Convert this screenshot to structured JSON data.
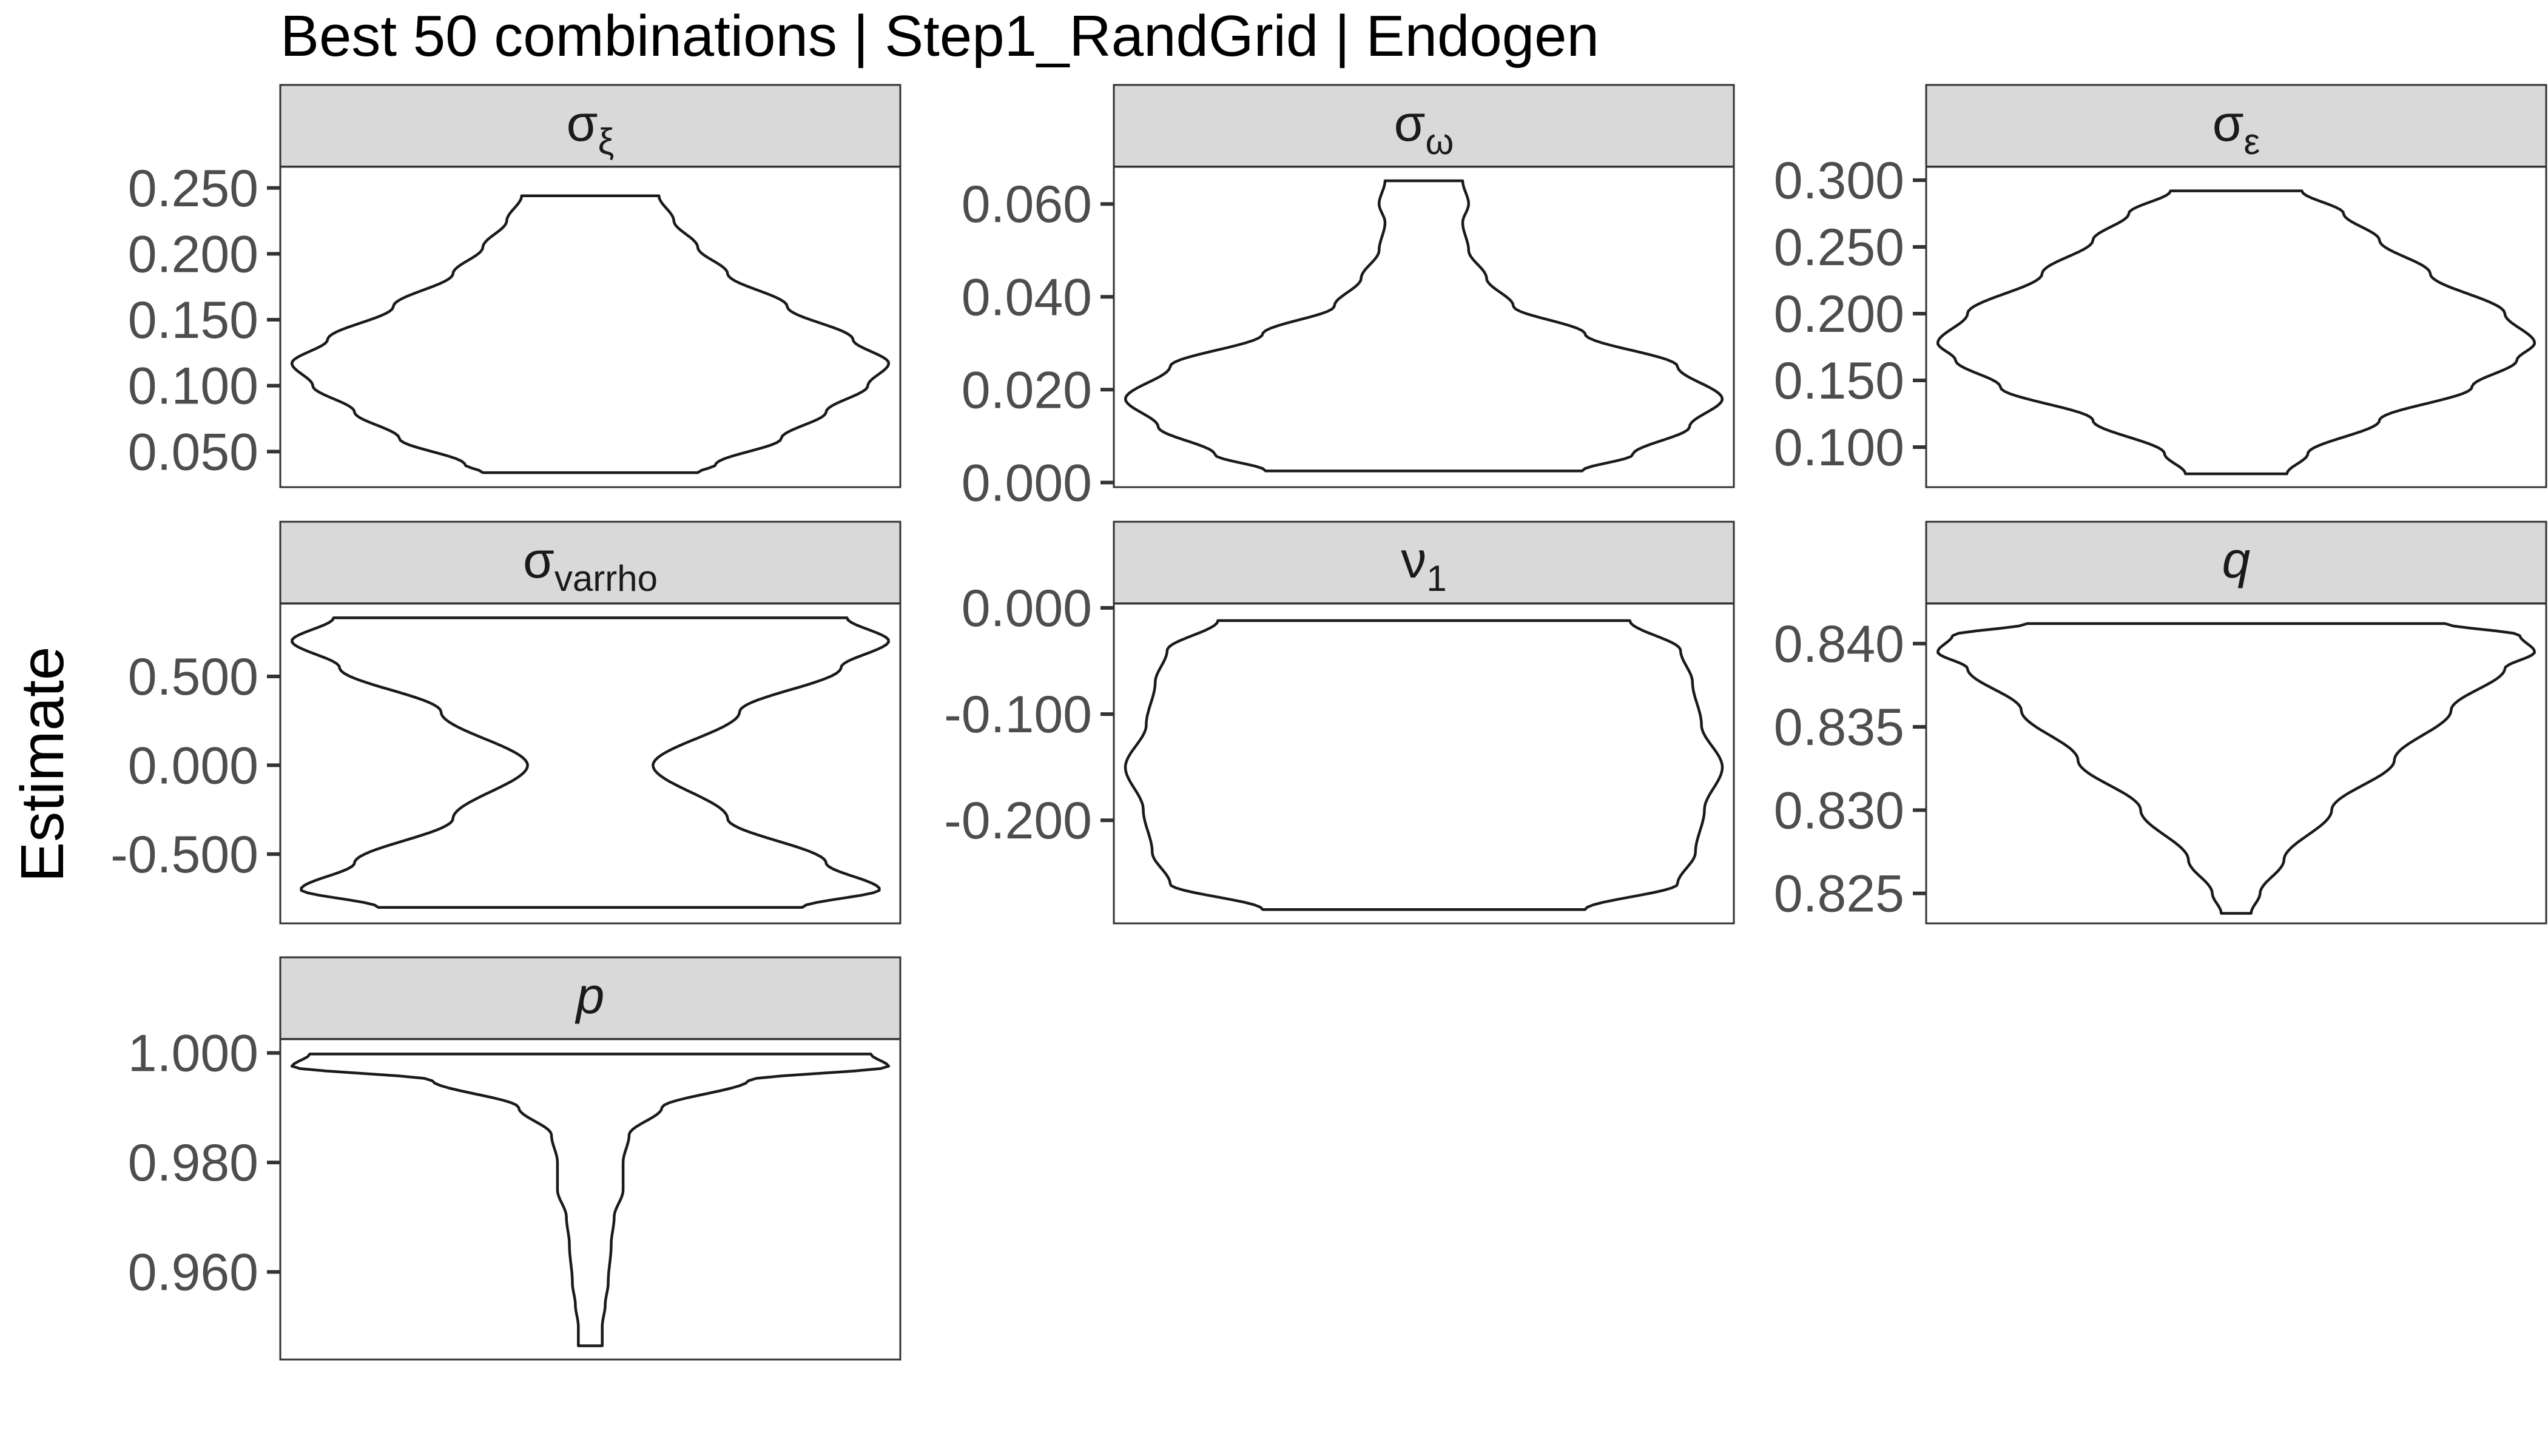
{
  "chart_data": {
    "type": "violin",
    "title": "Best 50 combinations | Step1_RandGrid | Endogen",
    "ylabel": "Estimate",
    "xlabel": "",
    "grid": false,
    "legend": "none",
    "colors": {
      "strip_fill": "#d9d9d9",
      "panel_border": "#333333",
      "violin_stroke": "#1a1a1a",
      "violin_fill": "#ffffff",
      "tick_label": "#4d4d4d"
    },
    "panels": [
      {
        "id": "sigma_xi",
        "label": {
          "base": "σ",
          "sub": "ξ"
        },
        "ylim": [
          0.023,
          0.266
        ],
        "yticks": [
          "0.050",
          "0.100",
          "0.150",
          "0.200",
          "0.250"
        ],
        "tick_values": [
          0.05,
          0.1,
          0.15,
          0.2,
          0.25
        ],
        "violin_min": 0.034,
        "violin_max": 0.244,
        "density_profile": [
          [
            0.034,
            0.36
          ],
          [
            0.04,
            0.42
          ],
          [
            0.06,
            0.64
          ],
          [
            0.08,
            0.79
          ],
          [
            0.1,
            0.93
          ],
          [
            0.117,
            1.0
          ],
          [
            0.135,
            0.88
          ],
          [
            0.16,
            0.66
          ],
          [
            0.185,
            0.46
          ],
          [
            0.205,
            0.36
          ],
          [
            0.225,
            0.28
          ],
          [
            0.244,
            0.23
          ]
        ]
      },
      {
        "id": "sigma_omega",
        "label": {
          "base": "σ",
          "sub": "ω"
        },
        "ylim": [
          -0.001,
          0.068
        ],
        "yticks": [
          "0.000",
          "0.020",
          "0.040",
          "0.060"
        ],
        "tick_values": [
          0.0,
          0.02,
          0.04,
          0.06
        ],
        "violin_min": 0.0025,
        "violin_max": 0.065,
        "density_profile": [
          [
            0.0025,
            0.53
          ],
          [
            0.006,
            0.7
          ],
          [
            0.012,
            0.89
          ],
          [
            0.018,
            1.0
          ],
          [
            0.025,
            0.85
          ],
          [
            0.032,
            0.54
          ],
          [
            0.038,
            0.3
          ],
          [
            0.044,
            0.21
          ],
          [
            0.05,
            0.15
          ],
          [
            0.056,
            0.13
          ],
          [
            0.06,
            0.15
          ],
          [
            0.065,
            0.13
          ]
        ]
      },
      {
        "id": "sigma_epsilon",
        "label": {
          "base": "σ",
          "sub": "ε"
        },
        "ylim": [
          0.07,
          0.31
        ],
        "yticks": [
          "0.100",
          "0.150",
          "0.200",
          "0.250",
          "0.300"
        ],
        "tick_values": [
          0.1,
          0.15,
          0.2,
          0.25,
          0.3
        ],
        "violin_min": 0.08,
        "violin_max": 0.292,
        "density_profile": [
          [
            0.08,
            0.17
          ],
          [
            0.095,
            0.24
          ],
          [
            0.12,
            0.48
          ],
          [
            0.145,
            0.79
          ],
          [
            0.165,
            0.94
          ],
          [
            0.178,
            1.0
          ],
          [
            0.2,
            0.9
          ],
          [
            0.23,
            0.65
          ],
          [
            0.255,
            0.48
          ],
          [
            0.275,
            0.36
          ],
          [
            0.292,
            0.22
          ]
        ]
      },
      {
        "id": "sigma_varrho",
        "label": {
          "base": "σ",
          "sub": "varrho"
        },
        "ylim": [
          -0.89,
          0.91
        ],
        "yticks": [
          "-0.500",
          "0.000",
          "0.500"
        ],
        "tick_values": [
          -0.5,
          0.0,
          0.5
        ],
        "violin_min": -0.8,
        "violin_max": 0.83,
        "density_profile": [
          [
            -0.8,
            0.71
          ],
          [
            -0.7,
            0.97
          ],
          [
            -0.55,
            0.79
          ],
          [
            -0.3,
            0.46
          ],
          [
            0.0,
            0.21
          ],
          [
            0.3,
            0.5
          ],
          [
            0.55,
            0.84
          ],
          [
            0.7,
            1.0
          ],
          [
            0.83,
            0.86
          ]
        ]
      },
      {
        "id": "nu_1",
        "label": {
          "base": "ν",
          "sub": "1"
        },
        "ylim": [
          -0.297,
          0.004
        ],
        "yticks": [
          "-0.200",
          "-0.100",
          "0.000"
        ],
        "tick_values": [
          -0.2,
          -0.1,
          0.0
        ],
        "violin_min": -0.284,
        "violin_max": -0.012,
        "density_profile": [
          [
            -0.284,
            0.54
          ],
          [
            -0.26,
            0.85
          ],
          [
            -0.23,
            0.91
          ],
          [
            -0.19,
            0.94
          ],
          [
            -0.15,
            1.0
          ],
          [
            -0.11,
            0.93
          ],
          [
            -0.07,
            0.9
          ],
          [
            -0.04,
            0.86
          ],
          [
            -0.012,
            0.69
          ]
        ]
      },
      {
        "id": "q",
        "label": {
          "base": "q",
          "sub": ""
        },
        "ylim": [
          0.8232,
          0.8424
        ],
        "yticks": [
          "0.825",
          "0.830",
          "0.835",
          "0.840"
        ],
        "tick_values": [
          0.825,
          0.83,
          0.835,
          0.84
        ],
        "violin_min": 0.8238,
        "violin_max": 0.8412,
        "density_profile": [
          [
            0.8238,
            0.05
          ],
          [
            0.825,
            0.08
          ],
          [
            0.827,
            0.16
          ],
          [
            0.83,
            0.32
          ],
          [
            0.833,
            0.53
          ],
          [
            0.836,
            0.72
          ],
          [
            0.8385,
            0.9
          ],
          [
            0.8395,
            1.0
          ],
          [
            0.8405,
            0.95
          ],
          [
            0.8412,
            0.7
          ]
        ]
      },
      {
        "id": "p",
        "label": {
          "base": "p",
          "sub": ""
        },
        "ylim": [
          0.944,
          1.0025
        ],
        "yticks": [
          "0.960",
          "0.980",
          "1.000"
        ],
        "tick_values": [
          0.96,
          0.98,
          1.0
        ],
        "violin_min": 0.9465,
        "violin_max": 0.9998,
        "density_profile": [
          [
            0.9465,
            0.04
          ],
          [
            0.95,
            0.04
          ],
          [
            0.954,
            0.05
          ],
          [
            0.958,
            0.06
          ],
          [
            0.965,
            0.07
          ],
          [
            0.97,
            0.08
          ],
          [
            0.975,
            0.11
          ],
          [
            0.98,
            0.11
          ],
          [
            0.985,
            0.13
          ],
          [
            0.99,
            0.24
          ],
          [
            0.995,
            0.53
          ],
          [
            0.9975,
            1.0
          ],
          [
            0.9998,
            0.94
          ]
        ]
      }
    ]
  }
}
